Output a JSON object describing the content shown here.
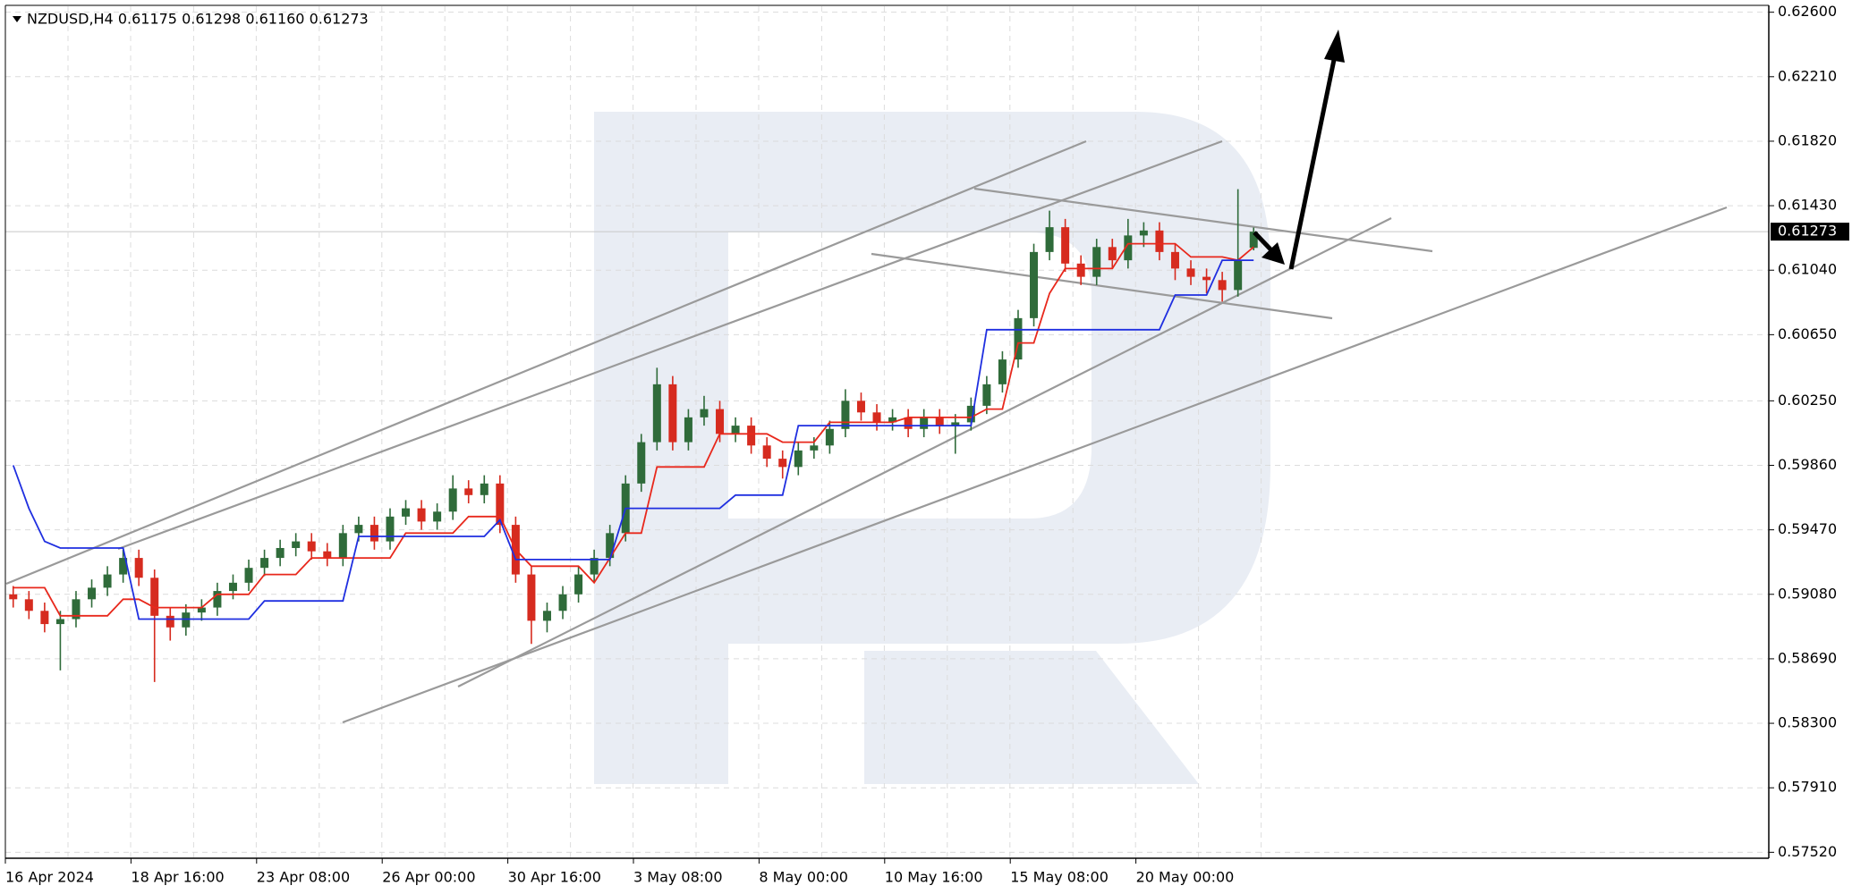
{
  "chart_data": {
    "type": "candlestick",
    "title": "NZDUSD,H4  0.61175 0.61298 0.61160 0.61273",
    "categories": [
      "16 Apr 2024",
      null,
      null,
      null,
      null,
      null,
      null,
      null,
      "18 Apr 16:00",
      null,
      null,
      null,
      null,
      null,
      null,
      null,
      "23 Apr 08:00",
      null,
      null,
      null,
      null,
      null,
      null,
      null,
      "26 Apr 00:00",
      null,
      null,
      null,
      null,
      null,
      null,
      null,
      "30 Apr 16:00",
      null,
      null,
      null,
      null,
      null,
      null,
      null,
      "3 May 08:00",
      null,
      null,
      null,
      null,
      null,
      null,
      null,
      "8 May 00:00",
      null,
      null,
      null,
      null,
      null,
      null,
      null,
      "10 May 16:00",
      null,
      null,
      null,
      null,
      null,
      null,
      null,
      "15 May 08:00",
      null,
      null,
      null,
      null,
      null,
      null,
      null,
      "20 May 00:00",
      null,
      null,
      null,
      null,
      null,
      null,
      null
    ],
    "open": [
      0.5908,
      0.5905,
      0.5898,
      0.589,
      0.5893,
      0.5905,
      0.5912,
      0.592,
      0.593,
      0.5918,
      0.5895,
      0.5888,
      0.5897,
      0.59,
      0.591,
      0.5915,
      0.5924,
      0.593,
      0.5936,
      0.594,
      0.5934,
      0.593,
      0.5945,
      0.595,
      0.594,
      0.5955,
      0.596,
      0.5952,
      0.5958,
      0.5972,
      0.5968,
      0.5975,
      0.595,
      0.592,
      0.5892,
      0.5898,
      0.5908,
      0.592,
      0.593,
      0.5945,
      0.5975,
      0.6,
      0.6035,
      0.6,
      0.6015,
      0.602,
      0.6005,
      0.601,
      0.5998,
      0.599,
      0.5985,
      0.5995,
      0.5998,
      0.6008,
      0.6025,
      0.6018,
      0.6012,
      0.6015,
      0.6008,
      0.6015,
      0.601,
      0.6012,
      0.6022,
      0.6035,
      0.605,
      0.6075,
      0.6115,
      0.613,
      0.6108,
      0.61,
      0.6118,
      0.611,
      0.6125,
      0.6128,
      0.6115,
      0.6105,
      0.61,
      0.6098,
      0.6092,
      0.61175
    ],
    "high": [
      0.5913,
      0.591,
      0.5903,
      0.5898,
      0.591,
      0.5917,
      0.5925,
      0.5935,
      0.5935,
      0.5923,
      0.59,
      0.5902,
      0.5905,
      0.5915,
      0.592,
      0.5929,
      0.5935,
      0.5941,
      0.5945,
      0.5945,
      0.5939,
      0.595,
      0.5955,
      0.5955,
      0.596,
      0.5965,
      0.5965,
      0.5963,
      0.598,
      0.5977,
      0.598,
      0.598,
      0.5955,
      0.5925,
      0.5903,
      0.5913,
      0.5925,
      0.5935,
      0.595,
      0.598,
      0.6005,
      0.6045,
      0.604,
      0.602,
      0.6028,
      0.6025,
      0.6015,
      0.6015,
      0.6003,
      0.5995,
      0.6,
      0.6003,
      0.6013,
      0.6032,
      0.603,
      0.6023,
      0.602,
      0.602,
      0.602,
      0.602,
      0.6017,
      0.6027,
      0.604,
      0.6055,
      0.608,
      0.612,
      0.614,
      0.6135,
      0.6113,
      0.6123,
      0.6123,
      0.6135,
      0.6133,
      0.6133,
      0.612,
      0.611,
      0.6105,
      0.6103,
      0.6153,
      0.61298
    ],
    "low": [
      0.59,
      0.5893,
      0.5885,
      0.5862,
      0.5888,
      0.59,
      0.5907,
      0.5915,
      0.5913,
      0.5855,
      0.588,
      0.5883,
      0.5892,
      0.5895,
      0.5905,
      0.591,
      0.5919,
      0.5925,
      0.5931,
      0.5929,
      0.5925,
      0.5925,
      0.594,
      0.5935,
      0.5935,
      0.595,
      0.5947,
      0.5947,
      0.5953,
      0.5963,
      0.5963,
      0.5945,
      0.5915,
      0.5878,
      0.5885,
      0.5893,
      0.5903,
      0.5915,
      0.5925,
      0.594,
      0.597,
      0.5995,
      0.5995,
      0.5995,
      0.601,
      0.6,
      0.6,
      0.5993,
      0.5985,
      0.5978,
      0.598,
      0.599,
      0.5993,
      0.6003,
      0.6013,
      0.6007,
      0.6007,
      0.6003,
      0.6003,
      0.6005,
      0.5993,
      0.6007,
      0.6017,
      0.603,
      0.6045,
      0.607,
      0.611,
      0.6103,
      0.6095,
      0.6095,
      0.6105,
      0.6105,
      0.6118,
      0.611,
      0.6098,
      0.6095,
      0.609,
      0.6085,
      0.6088,
      0.6116
    ],
    "close": [
      0.5905,
      0.5898,
      0.589,
      0.5893,
      0.5905,
      0.5912,
      0.592,
      0.593,
      0.5918,
      0.5895,
      0.5888,
      0.5897,
      0.59,
      0.591,
      0.5915,
      0.5924,
      0.593,
      0.5936,
      0.594,
      0.5934,
      0.593,
      0.5945,
      0.595,
      0.594,
      0.5955,
      0.596,
      0.5952,
      0.5958,
      0.5972,
      0.5968,
      0.5975,
      0.595,
      0.592,
      0.5892,
      0.5898,
      0.5908,
      0.592,
      0.593,
      0.5945,
      0.5975,
      0.6,
      0.6035,
      0.6,
      0.6015,
      0.602,
      0.6005,
      0.601,
      0.5998,
      0.599,
      0.5985,
      0.5995,
      0.5998,
      0.6008,
      0.6025,
      0.6018,
      0.6012,
      0.6015,
      0.6008,
      0.6015,
      0.601,
      0.6012,
      0.6022,
      0.6035,
      0.605,
      0.6075,
      0.6115,
      0.613,
      0.6108,
      0.61,
      0.6118,
      0.611,
      0.6125,
      0.6128,
      0.6115,
      0.6105,
      0.61,
      0.6098,
      0.6092,
      0.611,
      0.61273
    ],
    "up_color": "#2f6b3a",
    "down_color": "#d62b1f",
    "series": [
      {
        "color": "#e8281c",
        "values": [
          0.5912,
          0.5912,
          0.5912,
          0.5895,
          0.5895,
          0.5895,
          0.5895,
          0.5905,
          0.5905,
          0.59,
          0.59,
          0.59,
          0.59,
          0.5908,
          0.5908,
          0.5908,
          0.592,
          0.592,
          0.592,
          0.593,
          0.593,
          0.593,
          0.593,
          0.593,
          0.593,
          0.5945,
          0.5945,
          0.5945,
          0.5945,
          0.5955,
          0.5955,
          0.5955,
          0.5935,
          0.5925,
          0.5925,
          0.5925,
          0.5925,
          0.5915,
          0.593,
          0.5945,
          0.5945,
          0.5985,
          0.5985,
          0.5985,
          0.5985,
          0.6005,
          0.6005,
          0.6005,
          0.6005,
          0.6,
          0.6,
          0.6,
          0.6012,
          0.6012,
          0.6012,
          0.6012,
          0.6012,
          0.6015,
          0.6015,
          0.6015,
          0.6015,
          0.6015,
          0.602,
          0.602,
          0.606,
          0.606,
          0.609,
          0.6105,
          0.6105,
          0.6105,
          0.6105,
          0.612,
          0.612,
          0.612,
          0.612,
          0.6112,
          0.6112,
          0.6112,
          0.611,
          0.6118
        ]
      },
      {
        "color": "#1f2fe0",
        "values": [
          0.5986,
          0.596,
          0.594,
          0.5936,
          0.5936,
          0.5936,
          0.5936,
          0.5936,
          0.5893,
          0.5893,
          0.5893,
          0.5893,
          0.5893,
          0.5893,
          0.5893,
          0.5893,
          0.5904,
          0.5904,
          0.5904,
          0.5904,
          0.5904,
          0.5904,
          0.5943,
          0.5943,
          0.5943,
          0.5943,
          0.5943,
          0.5943,
          0.5943,
          0.5943,
          0.5943,
          0.5953,
          0.5929,
          0.5929,
          0.5929,
          0.5929,
          0.5929,
          0.5929,
          0.5929,
          0.596,
          0.596,
          0.596,
          0.596,
          0.596,
          0.596,
          0.596,
          0.5968,
          0.5968,
          0.5968,
          0.5968,
          0.601,
          0.601,
          0.601,
          0.601,
          0.601,
          0.601,
          0.601,
          0.601,
          0.601,
          0.601,
          0.601,
          0.601,
          0.6068,
          0.6068,
          0.6068,
          0.6068,
          0.6068,
          0.6068,
          0.6068,
          0.6068,
          0.6068,
          0.6068,
          0.6068,
          0.6068,
          0.6089,
          0.6089,
          0.6089,
          0.611,
          0.611,
          0.611
        ]
      }
    ],
    "ylim": [
      0.57484,
      0.62636
    ],
    "yticks": [
      {
        "value": 0.626,
        "label": "0.62600"
      },
      {
        "value": 0.6221,
        "label": "0.62210"
      },
      {
        "value": 0.6182,
        "label": "0.61820"
      },
      {
        "value": 0.6143,
        "label": "0.61430"
      },
      {
        "value": 0.6104,
        "label": "0.61040"
      },
      {
        "value": 0.6065,
        "label": "0.60650"
      },
      {
        "value": 0.6025,
        "label": "0.60250"
      },
      {
        "value": 0.5986,
        "label": "0.59860"
      },
      {
        "value": 0.5947,
        "label": "0.59470"
      },
      {
        "value": 0.5908,
        "label": "0.59080"
      },
      {
        "value": 0.5869,
        "label": "0.58690"
      },
      {
        "value": 0.583,
        "label": "0.58300"
      },
      {
        "value": 0.5791,
        "label": "0.57910"
      },
      {
        "value": 0.5752,
        "label": "0.57520"
      }
    ],
    "price_label": {
      "value": 0.61273,
      "label": "0.61273"
    },
    "grid": true
  }
}
